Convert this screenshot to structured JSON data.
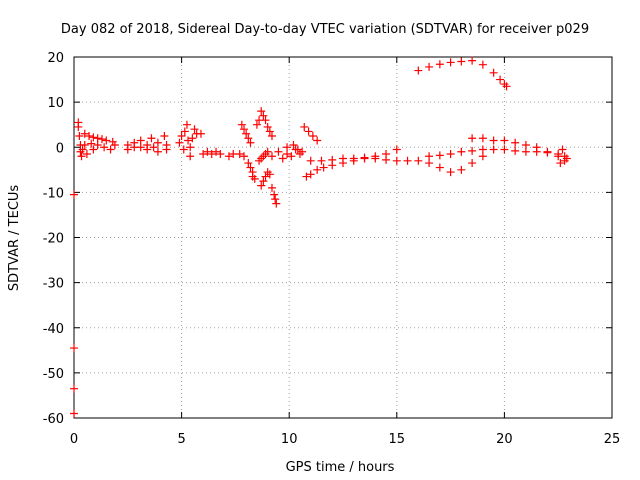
{
  "chart_data": {
    "type": "scatter",
    "title": "Day 082 of 2018, Sidereal Day-to-day VTEC variation (SDTVAR) for receiver p029",
    "xlabel": "GPS time / hours",
    "ylabel": "SDTVAR / TECUs",
    "xlim": [
      0,
      25
    ],
    "ylim": [
      -60,
      20
    ],
    "xticks": [
      0,
      5,
      10,
      15,
      20,
      25
    ],
    "yticks": [
      -60,
      -50,
      -40,
      -30,
      -20,
      -10,
      0,
      10,
      20
    ],
    "grid": true,
    "marker": "+",
    "color": "#ff0000",
    "series": [
      {
        "name": "SDTVAR",
        "points": [
          [
            0.0,
            -10.5
          ],
          [
            0.0,
            -44.5
          ],
          [
            0.0,
            -53.5
          ],
          [
            0.0,
            -59.0
          ],
          [
            0.2,
            4.5
          ],
          [
            0.2,
            5.5
          ],
          [
            0.25,
            2.5
          ],
          [
            0.3,
            0.5
          ],
          [
            0.3,
            -1.0
          ],
          [
            0.35,
            -2.0
          ],
          [
            0.5,
            3.0
          ],
          [
            0.7,
            2.5
          ],
          [
            0.9,
            2.2
          ],
          [
            1.1,
            2.0
          ],
          [
            1.3,
            1.8
          ],
          [
            1.5,
            1.5
          ],
          [
            1.8,
            1.2
          ],
          [
            0.5,
            0.5
          ],
          [
            0.8,
            0.8
          ],
          [
            1.1,
            0.5
          ],
          [
            1.4,
            0.0
          ],
          [
            1.7,
            -0.5
          ],
          [
            1.9,
            0.5
          ],
          [
            0.4,
            -0.5
          ],
          [
            0.6,
            -1.5
          ],
          [
            0.9,
            -0.5
          ],
          [
            2.5,
            0.5
          ],
          [
            2.5,
            -0.5
          ],
          [
            2.8,
            1.0
          ],
          [
            2.8,
            0.0
          ],
          [
            3.1,
            1.5
          ],
          [
            3.1,
            0.0
          ],
          [
            3.4,
            0.5
          ],
          [
            3.4,
            -0.5
          ],
          [
            3.6,
            2.0
          ],
          [
            3.7,
            0.0
          ],
          [
            3.9,
            1.0
          ],
          [
            3.9,
            -1.0
          ],
          [
            4.2,
            2.5
          ],
          [
            4.3,
            0.5
          ],
          [
            4.3,
            -0.5
          ],
          [
            4.9,
            1.0
          ],
          [
            5.0,
            2.5
          ],
          [
            5.1,
            -0.5
          ],
          [
            5.15,
            3.5
          ],
          [
            5.25,
            5.0
          ],
          [
            5.3,
            1.5
          ],
          [
            5.4,
            -2.0
          ],
          [
            5.4,
            0.0
          ],
          [
            5.5,
            2.0
          ],
          [
            5.6,
            4.0
          ],
          [
            5.7,
            3.0
          ],
          [
            5.9,
            3.0
          ],
          [
            6.0,
            -1.5
          ],
          [
            6.2,
            -1.0
          ],
          [
            6.4,
            -1.5
          ],
          [
            6.6,
            -1.0
          ],
          [
            6.8,
            -1.5
          ],
          [
            7.2,
            -2.0
          ],
          [
            7.4,
            -1.5
          ],
          [
            7.7,
            -1.5
          ],
          [
            7.9,
            -2.0
          ],
          [
            7.8,
            5.0
          ],
          [
            7.9,
            4.0
          ],
          [
            8.0,
            3.0
          ],
          [
            8.1,
            2.0
          ],
          [
            8.2,
            1.0
          ],
          [
            8.5,
            5.0
          ],
          [
            8.6,
            6.0
          ],
          [
            8.7,
            8.0
          ],
          [
            8.8,
            7.0
          ],
          [
            8.9,
            6.0
          ],
          [
            9.0,
            4.5
          ],
          [
            9.1,
            3.5
          ],
          [
            9.2,
            2.5
          ],
          [
            8.6,
            -3.0
          ],
          [
            8.7,
            -2.5
          ],
          [
            8.8,
            -2.0
          ],
          [
            8.9,
            -1.5
          ],
          [
            9.0,
            -1.0
          ],
          [
            9.2,
            -2.0
          ],
          [
            8.1,
            -3.5
          ],
          [
            8.2,
            -4.5
          ],
          [
            8.3,
            -5.5
          ],
          [
            8.3,
            -6.5
          ],
          [
            8.4,
            -7.0
          ],
          [
            8.7,
            -8.5
          ],
          [
            8.8,
            -7.5
          ],
          [
            8.9,
            -6.5
          ],
          [
            9.0,
            -5.5
          ],
          [
            9.1,
            -6.0
          ],
          [
            9.2,
            -9.0
          ],
          [
            9.3,
            -10.5
          ],
          [
            9.35,
            -11.5
          ],
          [
            9.4,
            -12.5
          ],
          [
            9.5,
            -1.0
          ],
          [
            9.7,
            -2.5
          ],
          [
            9.9,
            -1.5
          ],
          [
            10.1,
            -2.0
          ],
          [
            10.3,
            -0.5
          ],
          [
            10.5,
            -1.5
          ],
          [
            10.6,
            -1.0
          ],
          [
            9.9,
            0.0
          ],
          [
            10.2,
            0.5
          ],
          [
            10.4,
            -0.5
          ],
          [
            10.7,
            4.5
          ],
          [
            10.9,
            3.5
          ],
          [
            11.1,
            2.5
          ],
          [
            11.3,
            1.5
          ],
          [
            10.8,
            -6.5
          ],
          [
            11.0,
            -6.0
          ],
          [
            11.3,
            -5.0
          ],
          [
            11.6,
            -4.5
          ],
          [
            12.0,
            -4.0
          ],
          [
            12.5,
            -3.5
          ],
          [
            13.0,
            -3.0
          ],
          [
            13.5,
            -2.5
          ],
          [
            14.0,
            -2.0
          ],
          [
            14.5,
            -1.5
          ],
          [
            15.0,
            -0.5
          ],
          [
            11.0,
            -3.0
          ],
          [
            11.5,
            -3.0
          ],
          [
            12.0,
            -2.8
          ],
          [
            12.5,
            -2.5
          ],
          [
            13.0,
            -2.5
          ],
          [
            13.5,
            -2.3
          ],
          [
            14.0,
            -2.5
          ],
          [
            14.5,
            -2.8
          ],
          [
            15.0,
            -3.0
          ],
          [
            15.5,
            -3.0
          ],
          [
            16.0,
            -3.0
          ],
          [
            16.5,
            -3.5
          ],
          [
            17.0,
            -4.5
          ],
          [
            17.5,
            -5.5
          ],
          [
            18.0,
            -5.0
          ],
          [
            18.5,
            -3.5
          ],
          [
            19.0,
            -2.0
          ],
          [
            16.5,
            -2.0
          ],
          [
            17.0,
            -1.8
          ],
          [
            17.5,
            -1.5
          ],
          [
            18.0,
            -1.0
          ],
          [
            18.5,
            -0.8
          ],
          [
            19.0,
            -0.5
          ],
          [
            19.5,
            -0.5
          ],
          [
            20.0,
            -0.5
          ],
          [
            20.5,
            -0.8
          ],
          [
            21.0,
            -1.0
          ],
          [
            21.5,
            -1.0
          ],
          [
            22.0,
            -1.2
          ],
          [
            22.5,
            -1.5
          ],
          [
            22.8,
            -2.0
          ],
          [
            18.5,
            2.0
          ],
          [
            19.0,
            2.0
          ],
          [
            19.5,
            1.5
          ],
          [
            20.0,
            1.5
          ],
          [
            20.5,
            1.0
          ],
          [
            21.0,
            0.5
          ],
          [
            21.5,
            0.0
          ],
          [
            22.0,
            -1.0
          ],
          [
            22.5,
            -2.0
          ],
          [
            22.8,
            -3.0
          ],
          [
            22.6,
            -3.5
          ],
          [
            22.9,
            -2.5
          ],
          [
            22.7,
            -0.5
          ],
          [
            16.0,
            17.0
          ],
          [
            16.5,
            17.8
          ],
          [
            17.0,
            18.4
          ],
          [
            17.5,
            18.8
          ],
          [
            18.0,
            19.0
          ],
          [
            18.5,
            19.2
          ],
          [
            19.0,
            18.3
          ],
          [
            19.5,
            16.5
          ],
          [
            19.8,
            15.0
          ],
          [
            20.0,
            14.0
          ],
          [
            20.1,
            13.5
          ]
        ]
      }
    ]
  }
}
